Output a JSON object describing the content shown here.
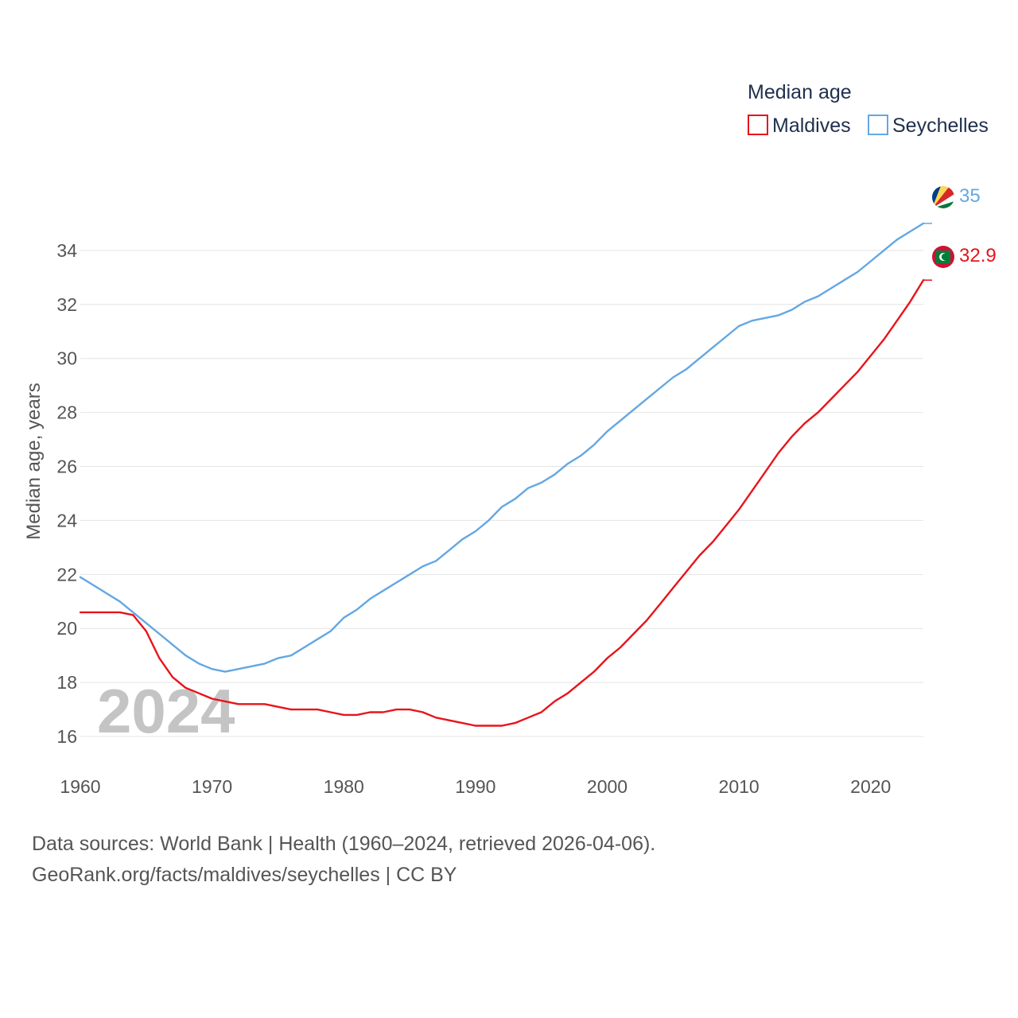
{
  "colors": {
    "maldives": "#e8141b",
    "seychelles": "#64a7e3",
    "grid": "#e4e4e4",
    "text": "#555555",
    "legend_text": "#1f2f4d",
    "year_overlay": "#c4c4c4"
  },
  "footer": {
    "source_line1": "Data sources: World Bank | Health (1960–2024, retrieved 2026-04-06).",
    "source_line2": "GeoRank.org/facts/maldives/seychelles | CC BY"
  },
  "chart_data": {
    "type": "line",
    "ylabel": "Median age, years",
    "xlabel": "",
    "legend_title": "Median age",
    "legend_position": "top-right",
    "year_overlay": "2024",
    "xlim": [
      1960,
      2024
    ],
    "ylim": [
      15,
      36.5
    ],
    "xticks": [
      1960,
      1970,
      1980,
      1990,
      2000,
      2010,
      2020
    ],
    "yticks": [
      16,
      18,
      20,
      22,
      24,
      26,
      28,
      30,
      32,
      34
    ],
    "grid": true,
    "x": [
      1960,
      1961,
      1962,
      1963,
      1964,
      1965,
      1966,
      1967,
      1968,
      1969,
      1970,
      1971,
      1972,
      1973,
      1974,
      1975,
      1976,
      1977,
      1978,
      1979,
      1980,
      1981,
      1982,
      1983,
      1984,
      1985,
      1986,
      1987,
      1988,
      1989,
      1990,
      1991,
      1992,
      1993,
      1994,
      1995,
      1996,
      1997,
      1998,
      1999,
      2000,
      2001,
      2002,
      2003,
      2004,
      2005,
      2006,
      2007,
      2008,
      2009,
      2010,
      2011,
      2012,
      2013,
      2014,
      2015,
      2016,
      2017,
      2018,
      2019,
      2020,
      2021,
      2022,
      2023,
      2024
    ],
    "series": [
      {
        "name": "Maldives",
        "color": "#e8141b",
        "end_label": "32.9",
        "flag": "maldives-flag-icon",
        "values": [
          20.6,
          20.6,
          20.6,
          20.6,
          20.5,
          19.9,
          18.9,
          18.2,
          17.8,
          17.6,
          17.4,
          17.3,
          17.2,
          17.2,
          17.2,
          17.1,
          17.0,
          17.0,
          17.0,
          16.9,
          16.8,
          16.8,
          16.9,
          16.9,
          17.0,
          17.0,
          16.9,
          16.7,
          16.6,
          16.5,
          16.4,
          16.4,
          16.4,
          16.5,
          16.7,
          16.9,
          17.3,
          17.6,
          18.0,
          18.4,
          18.9,
          19.3,
          19.8,
          20.3,
          20.9,
          21.5,
          22.1,
          22.7,
          23.2,
          23.8,
          24.4,
          25.1,
          25.8,
          26.5,
          27.1,
          27.6,
          28.0,
          28.5,
          29.0,
          29.5,
          30.1,
          30.7,
          31.4,
          32.1,
          32.9
        ]
      },
      {
        "name": "Seychelles",
        "color": "#64a7e3",
        "end_label": "35",
        "flag": "seychelles-flag-icon",
        "values": [
          21.9,
          21.6,
          21.3,
          21.0,
          20.6,
          20.2,
          19.8,
          19.4,
          19.0,
          18.7,
          18.5,
          18.4,
          18.5,
          18.6,
          18.7,
          18.9,
          19.0,
          19.3,
          19.6,
          19.9,
          20.4,
          20.7,
          21.1,
          21.4,
          21.7,
          22.0,
          22.3,
          22.5,
          22.9,
          23.3,
          23.6,
          24.0,
          24.5,
          24.8,
          25.2,
          25.4,
          25.7,
          26.1,
          26.4,
          26.8,
          27.3,
          27.7,
          28.1,
          28.5,
          28.9,
          29.3,
          29.6,
          30.0,
          30.4,
          30.8,
          31.2,
          31.4,
          31.5,
          31.6,
          31.8,
          32.1,
          32.3,
          32.6,
          32.9,
          33.2,
          33.6,
          34.0,
          34.4,
          34.7,
          35.0
        ]
      }
    ]
  }
}
